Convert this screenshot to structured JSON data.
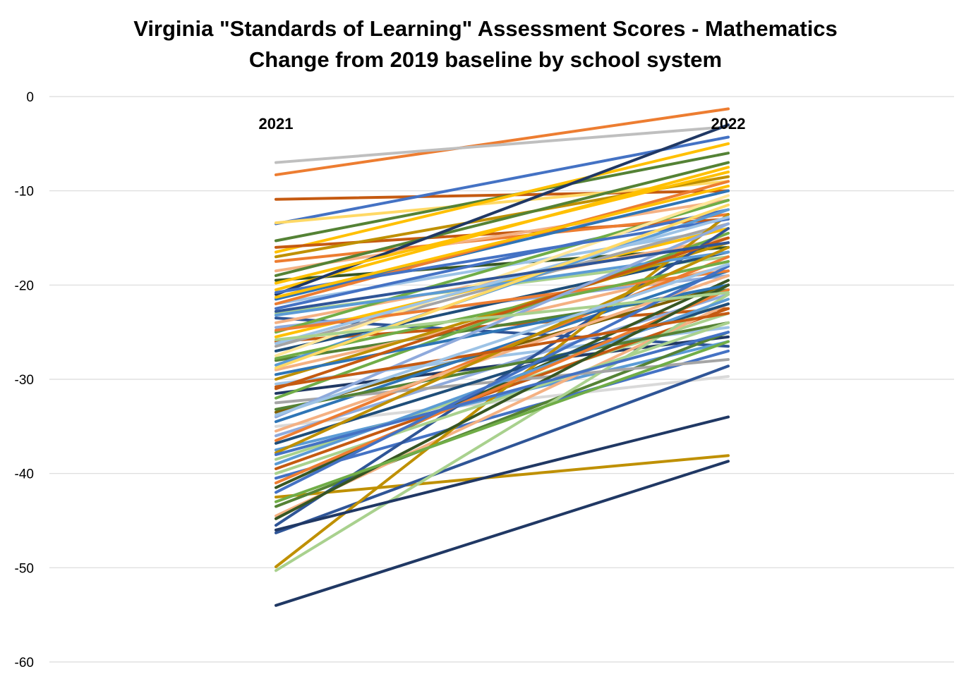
{
  "chart_data": {
    "type": "line",
    "title": "Virginia \"Standards of Learning\" Assessment Scores - Mathematics",
    "subtitle": "Change from 2019 baseline by school system",
    "x": [
      "2021",
      "2022"
    ],
    "ylim": [
      -60,
      0
    ],
    "yticks": [
      0,
      -10,
      -20,
      -30,
      -40,
      -50,
      -60
    ],
    "grid": true,
    "legend": "none",
    "series": [
      {
        "color": "#ED7D31",
        "values": [
          -8.3,
          -1.3
        ]
      },
      {
        "color": "#BFBFBF",
        "values": [
          -7.0,
          -3.2
        ]
      },
      {
        "color": "#C55A11",
        "values": [
          -10.9,
          -10.0
        ]
      },
      {
        "color": "#4472C4",
        "values": [
          -13.5,
          -4.3
        ]
      },
      {
        "color": "#FFD966",
        "values": [
          -13.4,
          -9.0
        ]
      },
      {
        "color": "#548235",
        "values": [
          -15.3,
          -6.0
        ]
      },
      {
        "color": "#FFC000",
        "values": [
          -16.5,
          -5.0
        ]
      },
      {
        "color": "#C55A11",
        "values": [
          -16.0,
          -13.0
        ]
      },
      {
        "color": "#BF9000",
        "values": [
          -17.0,
          -8.5
        ]
      },
      {
        "color": "#ED7D31",
        "values": [
          -17.5,
          -12.5
        ]
      },
      {
        "color": "#F4B183",
        "values": [
          -18.5,
          -11.0
        ]
      },
      {
        "color": "#548235",
        "values": [
          -19.0,
          -7.0
        ]
      },
      {
        "color": "#375623",
        "values": [
          -19.5,
          -16.0
        ]
      },
      {
        "color": "#FFC000",
        "values": [
          -20.5,
          -7.5
        ]
      },
      {
        "color": "#203864",
        "values": [
          -21.0,
          -3.0
        ]
      },
      {
        "color": "#2E75B6",
        "values": [
          -21.5,
          -10.0
        ]
      },
      {
        "color": "#9DC3E6",
        "values": [
          -22.0,
          -14.0
        ]
      },
      {
        "color": "#ED7D31",
        "values": [
          -22.0,
          -9.0
        ]
      },
      {
        "color": "#4472C4",
        "values": [
          -22.5,
          -12.0
        ]
      },
      {
        "color": "#A9D18E",
        "values": [
          -23.0,
          -17.0
        ]
      },
      {
        "color": "#2F5597",
        "values": [
          -23.5,
          -26.5
        ]
      },
      {
        "color": "#F4B183",
        "values": [
          -24.0,
          -15.0
        ]
      },
      {
        "color": "#8FAADC",
        "values": [
          -24.5,
          -19.0
        ]
      },
      {
        "color": "#70AD47",
        "values": [
          -25.0,
          -11.0
        ]
      },
      {
        "color": "#FFC000",
        "values": [
          -25.5,
          -14.0
        ]
      },
      {
        "color": "#C55A11",
        "values": [
          -26.0,
          -22.5
        ]
      },
      {
        "color": "#A5A5A5",
        "values": [
          -26.5,
          -13.5
        ]
      },
      {
        "color": "#1F4E79",
        "values": [
          -27.0,
          -16.5
        ]
      },
      {
        "color": "#FFE699",
        "values": [
          -27.5,
          -10.5
        ]
      },
      {
        "color": "#548235",
        "values": [
          -28.0,
          -20.5
        ]
      },
      {
        "color": "#5B9BD5",
        "values": [
          -28.5,
          -12.0
        ]
      },
      {
        "color": "#F4B183",
        "values": [
          -29.0,
          -18.0
        ]
      },
      {
        "color": "#BF9000",
        "values": [
          -30.0,
          -15.5
        ]
      },
      {
        "color": "#9DC3E6",
        "values": [
          -30.5,
          -24.5
        ]
      },
      {
        "color": "#203864",
        "values": [
          -31.5,
          -25.5
        ]
      },
      {
        "color": "#70AD47",
        "values": [
          -32.0,
          -14.5
        ]
      },
      {
        "color": "#7F6000",
        "values": [
          -33.5,
          -20.0
        ]
      },
      {
        "color": "#2E75B6",
        "values": [
          -34.5,
          -18.5
        ]
      },
      {
        "color": "#D9D9D9",
        "values": [
          -35.0,
          -29.7
        ]
      },
      {
        "color": "#8FAADC",
        "values": [
          -36.0,
          -21.0
        ]
      },
      {
        "color": "#ED7D31",
        "values": [
          -36.5,
          -17.0
        ]
      },
      {
        "color": "#5B9BD5",
        "values": [
          -37.5,
          -26.0
        ]
      },
      {
        "color": "#A9D18E",
        "values": [
          -38.5,
          -23.0
        ]
      },
      {
        "color": "#C55A11",
        "values": [
          -39.5,
          -22.5
        ]
      },
      {
        "color": "#4472C4",
        "values": [
          -40.5,
          -27.0
        ]
      },
      {
        "color": "#385723",
        "values": [
          -41.5,
          -19.5
        ]
      },
      {
        "color": "#BF9000",
        "values": [
          -42.5,
          -38.1
        ]
      },
      {
        "color": "#548235",
        "values": [
          -43.5,
          -25.0
        ]
      },
      {
        "color": "#F4B183",
        "values": [
          -44.5,
          -22.0
        ]
      },
      {
        "color": "#2F5597",
        "values": [
          -45.5,
          -14.0
        ]
      },
      {
        "color": "#2F5597",
        "values": [
          -46.3,
          -28.6
        ]
      },
      {
        "color": "#A9D18E",
        "values": [
          -50.3,
          -21.0
        ]
      },
      {
        "color": "#BF9000",
        "values": [
          -49.9,
          -12.5
        ]
      },
      {
        "color": "#203864",
        "values": [
          -54.0,
          -38.7
        ]
      },
      {
        "color": "#203864",
        "values": [
          -46.0,
          -34.0
        ]
      },
      {
        "color": "#4472C4",
        "values": [
          -20.8,
          -13.0
        ]
      },
      {
        "color": "#FFC000",
        "values": [
          -21.3,
          -9.5
        ]
      },
      {
        "color": "#5B9BD5",
        "values": [
          -23.2,
          -16.5
        ]
      },
      {
        "color": "#ED7D31",
        "values": [
          -24.8,
          -18.5
        ]
      },
      {
        "color": "#9DC3E6",
        "values": [
          -26.2,
          -12.8
        ]
      },
      {
        "color": "#70AD47",
        "values": [
          -27.8,
          -17.5
        ]
      },
      {
        "color": "#FFD966",
        "values": [
          -28.8,
          -11.5
        ]
      },
      {
        "color": "#2E75B6",
        "values": [
          -29.5,
          -20.0
        ]
      },
      {
        "color": "#C55A11",
        "values": [
          -31.0,
          -15.0
        ]
      },
      {
        "color": "#A5A5A5",
        "values": [
          -32.5,
          -27.9
        ]
      },
      {
        "color": "#548235",
        "values": [
          -33.2,
          -24.0
        ]
      },
      {
        "color": "#8FAADC",
        "values": [
          -34.0,
          -13.5
        ]
      },
      {
        "color": "#F4B183",
        "values": [
          -35.5,
          -19.0
        ]
      },
      {
        "color": "#1F4E79",
        "values": [
          -36.8,
          -22.0
        ]
      },
      {
        "color": "#BF9000",
        "values": [
          -37.8,
          -16.0
        ]
      },
      {
        "color": "#5B9BD5",
        "values": [
          -39.0,
          -21.5
        ]
      },
      {
        "color": "#A9D18E",
        "values": [
          -40.0,
          -24.0
        ]
      },
      {
        "color": "#ED7D31",
        "values": [
          -41.0,
          -20.5
        ]
      },
      {
        "color": "#4472C4",
        "values": [
          -42.0,
          -18.0
        ]
      },
      {
        "color": "#375623",
        "values": [
          -44.8,
          -20.0
        ]
      },
      {
        "color": "#FFC000",
        "values": [
          -19.8,
          -8.0
        ]
      },
      {
        "color": "#2F5597",
        "values": [
          -22.8,
          -15.5
        ]
      },
      {
        "color": "#A9D18E",
        "values": [
          -25.8,
          -20.8
        ]
      },
      {
        "color": "#C55A11",
        "values": [
          -30.8,
          -23.0
        ]
      },
      {
        "color": "#9DC3E6",
        "values": [
          -33.8,
          -17.8
        ]
      },
      {
        "color": "#4472C4",
        "values": [
          -38.0,
          -25.0
        ]
      },
      {
        "color": "#70AD47",
        "values": [
          -43.0,
          -26.0
        ]
      }
    ]
  }
}
